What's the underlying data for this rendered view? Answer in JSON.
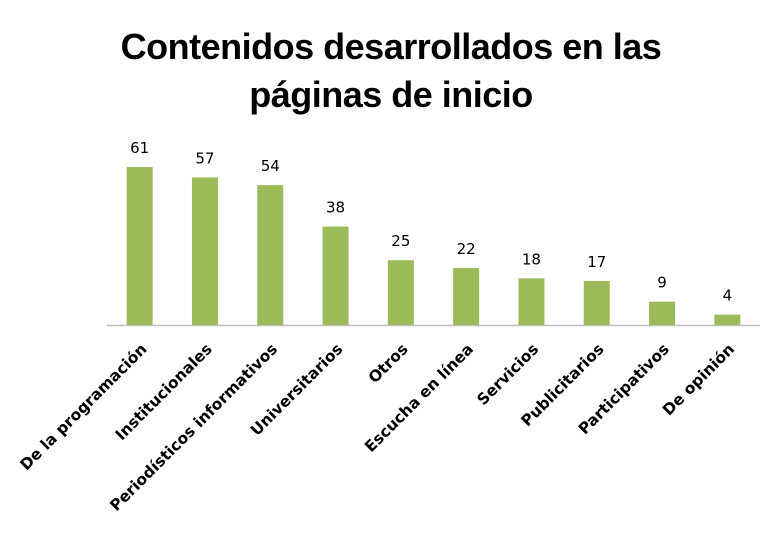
{
  "chart_data": {
    "type": "bar",
    "title_lines": [
      "Contenidos desarrollados en las",
      "páginas de inicio"
    ],
    "categories": [
      "De la programación",
      "Institucionales",
      "Periodísticos informativos",
      "Universitarios",
      "Otros",
      "Escucha en línea",
      "Servicios",
      "Publicitarios",
      "Participativos",
      "De opinión"
    ],
    "values": [
      61,
      57,
      54,
      38,
      25,
      22,
      18,
      17,
      9,
      4
    ],
    "data_labels": [
      "61",
      "57",
      "54",
      "38",
      "25",
      "22",
      "18",
      "17",
      "9",
      "4"
    ],
    "xlabel": "",
    "ylabel": "",
    "ylim": [
      0,
      61
    ],
    "grid": false,
    "legend": "none",
    "bar_color": "#9BBB59",
    "axis_color": "#BFBFBF"
  }
}
